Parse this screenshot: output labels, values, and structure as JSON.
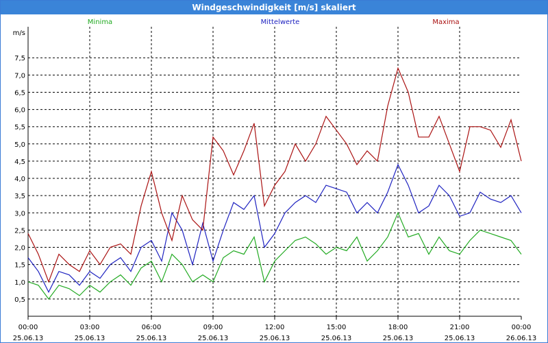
{
  "window": {
    "title": "Windgeschwindigkeit [m/s] skaliert"
  },
  "chart_data": {
    "type": "line",
    "title": "Windgeschwindigkeit [m/s] skaliert",
    "ylabel": "m/s",
    "ylim": [
      0,
      8.4
    ],
    "yticks": [
      "0,5",
      "1,0",
      "1,5",
      "2,0",
      "2,5",
      "3,0",
      "3,5",
      "4,0",
      "4,5",
      "5,0",
      "5,5",
      "6,0",
      "6,5",
      "7,0",
      "7,5"
    ],
    "ytick_values": [
      0.5,
      1,
      1.5,
      2,
      2.5,
      3,
      3.5,
      4,
      4.5,
      5,
      5.5,
      6,
      6.5,
      7,
      7.5
    ],
    "xlim": [
      0,
      24
    ],
    "xticks": [
      {
        "x": 0,
        "time": "00:00",
        "date": "25.06.13"
      },
      {
        "x": 3,
        "time": "03:00",
        "date": "25.06.13"
      },
      {
        "x": 6,
        "time": "06:00",
        "date": "25.06.13"
      },
      {
        "x": 9,
        "time": "09:00",
        "date": "25.06.13"
      },
      {
        "x": 12,
        "time": "12:00",
        "date": "25.06.13"
      },
      {
        "x": 15,
        "time": "15:00",
        "date": "25.06.13"
      },
      {
        "x": 18,
        "time": "18:00",
        "date": "25.06.13"
      },
      {
        "x": 21,
        "time": "21:00",
        "date": "25.06.13"
      },
      {
        "x": 24,
        "time": "00:00",
        "date": "26.06.13"
      }
    ],
    "grid": "dashed",
    "legend": "top",
    "x_hours": [
      0,
      0.5,
      1,
      1.5,
      2,
      2.5,
      3,
      3.5,
      4,
      4.5,
      5,
      5.5,
      6,
      6.5,
      7,
      7.5,
      8,
      8.5,
      9,
      9.5,
      10,
      10.5,
      11,
      11.5,
      12,
      12.5,
      13,
      13.5,
      14,
      14.5,
      15,
      15.5,
      16,
      16.5,
      17,
      17.5,
      18,
      18.5,
      19,
      19.5,
      20,
      20.5,
      21,
      21.5,
      22,
      22.5,
      23,
      23.5,
      24
    ],
    "series": [
      {
        "name": "Minima",
        "color": "#22aa22",
        "values": [
          1.0,
          0.9,
          0.5,
          0.9,
          0.8,
          0.6,
          0.9,
          0.7,
          1.0,
          1.2,
          0.9,
          1.4,
          1.6,
          1.0,
          1.8,
          1.5,
          1.0,
          1.2,
          1.0,
          1.7,
          1.9,
          1.8,
          2.3,
          1.0,
          1.6,
          1.9,
          2.2,
          2.3,
          2.1,
          1.8,
          2.0,
          1.9,
          2.3,
          1.6,
          1.9,
          2.3,
          3.0,
          2.3,
          2.4,
          1.8,
          2.3,
          1.9,
          1.8,
          2.2,
          2.5,
          2.4,
          2.3,
          2.2,
          1.8
        ]
      },
      {
        "name": "Mittelwerte",
        "color": "#1e22c0",
        "values": [
          1.7,
          1.3,
          0.7,
          1.3,
          1.2,
          0.9,
          1.3,
          1.1,
          1.5,
          1.7,
          1.3,
          2.0,
          2.2,
          1.6,
          3.0,
          2.5,
          1.5,
          2.7,
          1.6,
          2.5,
          3.3,
          3.1,
          3.5,
          2.0,
          2.4,
          3.0,
          3.3,
          3.5,
          3.3,
          3.8,
          3.7,
          3.6,
          3.0,
          3.3,
          3.0,
          3.6,
          4.4,
          3.8,
          3.0,
          3.2,
          3.8,
          3.5,
          2.9,
          3.0,
          3.6,
          3.4,
          3.3,
          3.5,
          3.0
        ]
      },
      {
        "name": "Maxima",
        "color": "#aa1111",
        "values": [
          2.4,
          1.8,
          1.0,
          1.8,
          1.5,
          1.3,
          1.9,
          1.5,
          2.0,
          2.1,
          1.8,
          3.2,
          4.2,
          3.0,
          2.2,
          3.5,
          2.8,
          2.5,
          5.2,
          4.8,
          4.1,
          4.8,
          5.6,
          3.2,
          3.8,
          4.2,
          5.0,
          4.5,
          5.0,
          5.8,
          5.4,
          5.0,
          4.4,
          4.8,
          4.5,
          6.1,
          7.2,
          6.5,
          5.2,
          5.2,
          5.8,
          5.0,
          4.2,
          5.5,
          5.5,
          5.4,
          4.9,
          5.7,
          4.5
        ]
      }
    ]
  }
}
